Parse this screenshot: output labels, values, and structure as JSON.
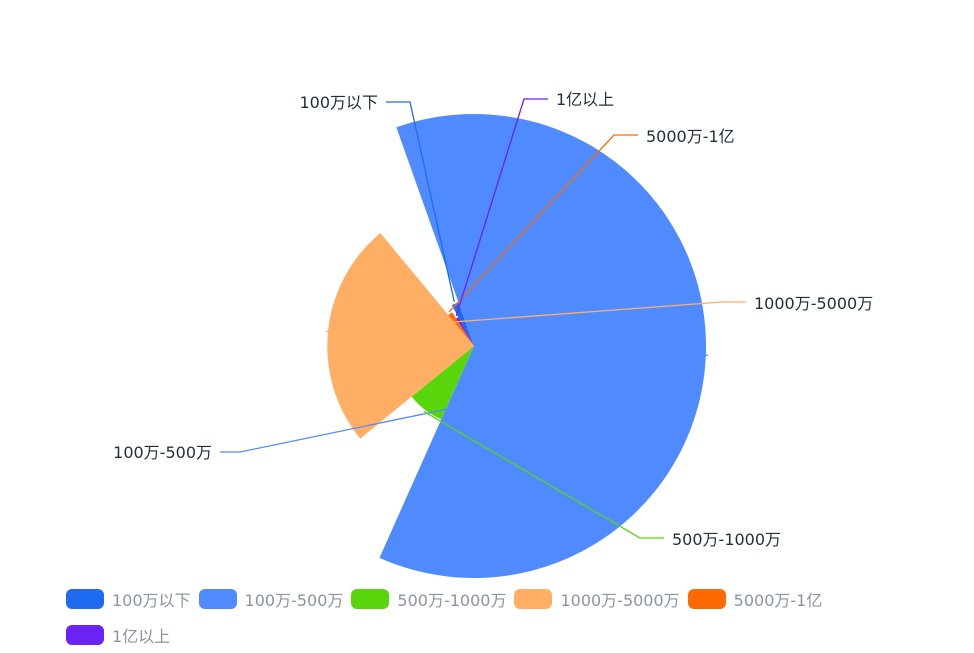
{
  "chart_data": {
    "type": "pie",
    "variant": "rose",
    "categories": [
      "100万以下",
      "100万-500万",
      "500万-1000万",
      "1000万-5000万",
      "5000万-1亿",
      "1亿以上"
    ],
    "values": [
      4,
      100,
      12,
      40,
      3,
      2
    ],
    "colors": [
      "#1e6af0",
      "#4f8bff",
      "#59d60b",
      "#ffae63",
      "#ff6a00",
      "#6a22f5"
    ],
    "legend_position": "bottom-left"
  }
}
